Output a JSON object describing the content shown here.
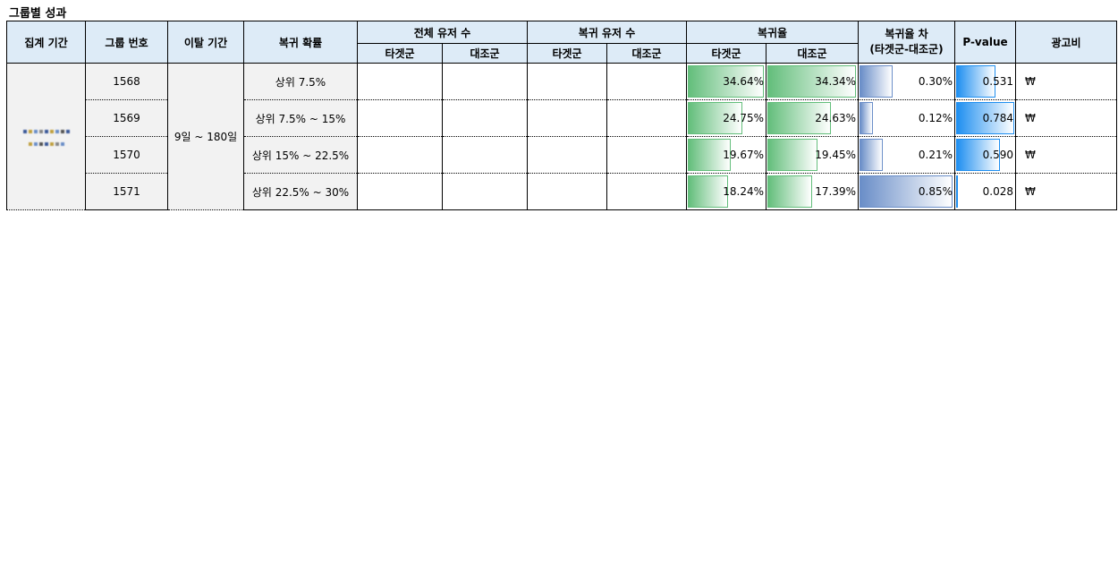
{
  "title": "그룹별 성과",
  "headers": {
    "period": "집계 기간",
    "group_no": "그룹 번호",
    "churn_period": "이탈 기간",
    "return_prob": "복귀 확률",
    "total_users": "전체 유저 수",
    "return_users": "복귀 유저 수",
    "return_rate": "복귀율",
    "rate_diff_line1": "복귀율 차",
    "rate_diff_line2": "(타겟군-대조군)",
    "pvalue": "P-value",
    "ad_cost": "광고비",
    "target": "타겟군",
    "control": "대조군"
  },
  "churn_period_value": "9일 ~ 180일",
  "rows": [
    {
      "group": "1568",
      "prob": "상위 7.5%",
      "target_rate": "34.64%",
      "control_rate": "34.34%",
      "diff": "0.30%",
      "pvalue": "0.531",
      "cost": "₩",
      "target_pct": 34.64,
      "control_pct": 34.34,
      "diff_pct": 0.3,
      "pvalue_num": 0.531
    },
    {
      "group": "1569",
      "prob": "상위 7.5% ~ 15%",
      "target_rate": "24.75%",
      "control_rate": "24.63%",
      "diff": "0.12%",
      "pvalue": "0.784",
      "cost": "₩",
      "target_pct": 24.75,
      "control_pct": 24.63,
      "diff_pct": 0.12,
      "pvalue_num": 0.784
    },
    {
      "group": "1570",
      "prob": "상위 15% ~ 22.5%",
      "target_rate": "19.67%",
      "control_rate": "19.45%",
      "diff": "0.21%",
      "pvalue": "0.590",
      "cost": "₩",
      "target_pct": 19.67,
      "control_pct": 19.45,
      "diff_pct": 0.21,
      "pvalue_num": 0.59
    },
    {
      "group": "1571",
      "prob": "상위 22.5% ~ 30%",
      "target_rate": "18.24%",
      "control_rate": "17.39%",
      "diff": "0.85%",
      "pvalue": "0.028",
      "cost": "₩",
      "target_pct": 18.24,
      "control_pct": 17.39,
      "diff_pct": 0.85,
      "pvalue_num": 0.028
    }
  ],
  "colors": {
    "header_bg": "#ddebf7",
    "grey_cell": "#f2f2f2",
    "green_bar": "#63be7b",
    "blue_bar": "#6a8ec8",
    "pvalue_bar": "#1f8ff0"
  }
}
